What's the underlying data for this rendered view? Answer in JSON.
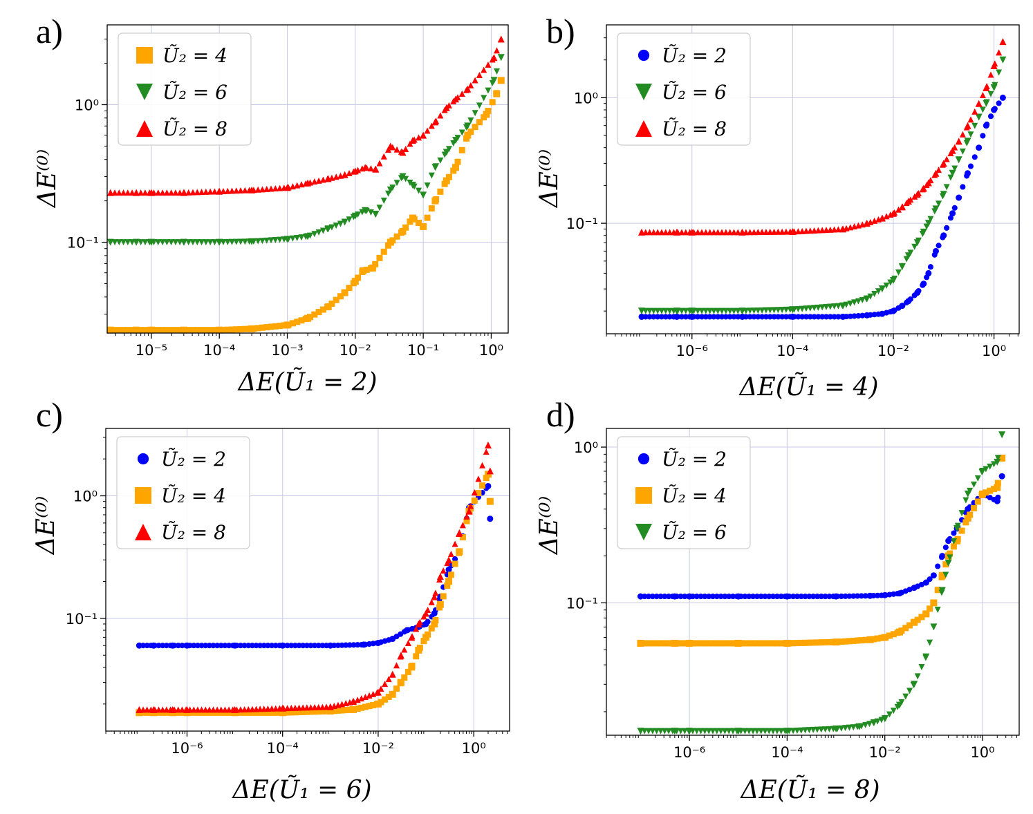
{
  "figure": {
    "panels": [
      "a)",
      "b)",
      "c)",
      "d)"
    ]
  },
  "chart_data": [
    {
      "type": "scatter",
      "panel": "a)",
      "xlabel": "ΔE(Ũ₁ = 2)",
      "ylabel": "ΔE⁽⁰⁾",
      "xscale": "log",
      "yscale": "log",
      "xlim_log10": [
        -5.65,
        0.25
      ],
      "ylim_log10": [
        -1.66,
        0.58
      ],
      "xticks": [
        "10⁻⁵",
        "10⁻⁴",
        "10⁻³",
        "10⁻²",
        "10⁻¹",
        "10⁰"
      ],
      "xtick_exponents": [
        -5,
        -4,
        -3,
        -2,
        -1,
        0
      ],
      "yticks": [
        "10⁻¹",
        "10⁰"
      ],
      "ytick_exponents": [
        -1,
        0
      ],
      "grid": true,
      "legend_position": "top-left",
      "series": [
        {
          "name": "Ũ₂ = 4",
          "marker": "square",
          "color": "#ffa500",
          "x": [
            2.5e-06,
            6e-06,
            1e-05,
            3e-05,
            0.0001,
            0.0003,
            0.001,
            0.002,
            0.004,
            0.007,
            0.01,
            0.013,
            0.018,
            0.033,
            0.05,
            0.07,
            0.1,
            0.15,
            0.22,
            0.3,
            0.45,
            0.85,
            1.2,
            1.4
          ],
          "y": [
            0.023,
            0.023,
            0.023,
            0.023,
            0.023,
            0.0235,
            0.025,
            0.028,
            0.034,
            0.043,
            0.052,
            0.062,
            0.065,
            0.1,
            0.12,
            0.15,
            0.13,
            0.2,
            0.28,
            0.35,
            0.6,
            0.85,
            1.2,
            1.5
          ]
        },
        {
          "name": "Ũ₂ = 6",
          "marker": "triangle-down",
          "color": "#228b22",
          "x": [
            2.5e-06,
            6e-06,
            1e-05,
            3e-05,
            0.0001,
            0.0003,
            0.001,
            0.002,
            0.004,
            0.007,
            0.01,
            0.014,
            0.02,
            0.033,
            0.05,
            0.07,
            0.1,
            0.15,
            0.22,
            0.3,
            0.45,
            1.1,
            1.4
          ],
          "y": [
            0.1,
            0.1,
            0.1,
            0.1,
            0.1,
            0.101,
            0.105,
            0.11,
            0.125,
            0.14,
            0.155,
            0.17,
            0.16,
            0.24,
            0.3,
            0.26,
            0.22,
            0.35,
            0.45,
            0.55,
            0.7,
            1.5,
            2.2
          ]
        },
        {
          "name": "Ũ₂ = 8",
          "marker": "triangle-up",
          "color": "#ff0000",
          "x": [
            2.5e-06,
            6e-06,
            1e-05,
            3e-05,
            0.0001,
            0.0003,
            0.001,
            0.002,
            0.004,
            0.007,
            0.01,
            0.014,
            0.02,
            0.033,
            0.05,
            0.07,
            0.1,
            0.15,
            0.22,
            0.3,
            0.45,
            1.1,
            1.4
          ],
          "y": [
            0.23,
            0.23,
            0.23,
            0.23,
            0.235,
            0.24,
            0.25,
            0.27,
            0.29,
            0.31,
            0.33,
            0.35,
            0.34,
            0.5,
            0.45,
            0.55,
            0.6,
            0.75,
            0.95,
            1.1,
            1.3,
            2.2,
            3.0
          ]
        }
      ]
    },
    {
      "type": "scatter",
      "panel": "b)",
      "xlabel": "ΔE(Ũ₁ = 4)",
      "ylabel": "ΔE⁽⁰⁾",
      "xscale": "log",
      "yscale": "log",
      "xlim_log10": [
        -7.7,
        0.5
      ],
      "ylim_log10": [
        -1.88,
        0.58
      ],
      "xticks": [
        "10⁻⁶",
        "10⁻⁴",
        "10⁻²",
        "10⁰"
      ],
      "xtick_exponents": [
        -6,
        -4,
        -2,
        0
      ],
      "yticks": [
        "10⁻¹",
        "10⁰"
      ],
      "ytick_exponents": [
        -1,
        0
      ],
      "grid": true,
      "legend_position": "top-left",
      "series": [
        {
          "name": "Ũ₂ = 2",
          "marker": "circle",
          "color": "#0000ff",
          "x": [
            1e-07,
            5e-07,
            1e-06,
            1e-05,
            0.0001,
            0.001,
            0.003,
            0.006,
            0.01,
            0.015,
            0.02,
            0.03,
            0.04,
            0.05,
            0.07,
            0.1,
            0.15,
            0.2,
            0.3,
            0.5,
            0.7,
            1.0,
            1.5
          ],
          "y": [
            0.018,
            0.018,
            0.018,
            0.018,
            0.018,
            0.018,
            0.0185,
            0.019,
            0.02,
            0.022,
            0.024,
            0.028,
            0.033,
            0.04,
            0.06,
            0.08,
            0.12,
            0.16,
            0.25,
            0.4,
            0.6,
            0.8,
            1.0
          ]
        },
        {
          "name": "Ũ₂ = 6",
          "marker": "triangle-down",
          "color": "#228b22",
          "x": [
            1e-07,
            5e-07,
            1e-06,
            1e-05,
            0.0001,
            0.001,
            0.003,
            0.006,
            0.01,
            0.015,
            0.02,
            0.03,
            0.04,
            0.05,
            0.07,
            0.1,
            0.15,
            0.2,
            0.3,
            0.5,
            0.7,
            1.0,
            1.5
          ],
          "y": [
            0.02,
            0.02,
            0.02,
            0.02,
            0.0205,
            0.022,
            0.025,
            0.03,
            0.035,
            0.045,
            0.055,
            0.07,
            0.085,
            0.1,
            0.13,
            0.17,
            0.25,
            0.32,
            0.45,
            0.7,
            0.9,
            1.2,
            2.0
          ]
        },
        {
          "name": "Ũ₂ = 8",
          "marker": "triangle-up",
          "color": "#ff0000",
          "x": [
            1e-07,
            5e-07,
            1e-06,
            1e-05,
            0.0001,
            0.001,
            0.003,
            0.006,
            0.01,
            0.015,
            0.02,
            0.03,
            0.04,
            0.05,
            0.07,
            0.1,
            0.15,
            0.2,
            0.3,
            0.5,
            0.7,
            1.0,
            1.5
          ],
          "y": [
            0.085,
            0.085,
            0.085,
            0.085,
            0.086,
            0.09,
            0.1,
            0.11,
            0.12,
            0.135,
            0.15,
            0.17,
            0.19,
            0.21,
            0.25,
            0.3,
            0.38,
            0.45,
            0.6,
            0.9,
            1.2,
            1.8,
            2.8
          ]
        }
      ]
    },
    {
      "type": "scatter",
      "panel": "c)",
      "xlabel": "ΔE(Ũ₁ = 6)",
      "ylabel": "ΔE⁽⁰⁾",
      "xscale": "log",
      "yscale": "log",
      "xlim_log10": [
        -7.7,
        0.75
      ],
      "ylim_log10": [
        -1.92,
        0.55
      ],
      "xticks": [
        "10⁻⁶",
        "10⁻⁴",
        "10⁻²",
        "10⁰"
      ],
      "xtick_exponents": [
        -6,
        -4,
        -2,
        0
      ],
      "yticks": [
        "10⁻¹",
        "10⁰"
      ],
      "ytick_exponents": [
        -1,
        0
      ],
      "grid": true,
      "legend_position": "top-left",
      "series": [
        {
          "name": "Ũ₂ = 2",
          "marker": "circle",
          "color": "#0000ff",
          "x": [
            1e-07,
            2e-07,
            5e-07,
            1e-06,
            1e-05,
            0.0001,
            0.001,
            0.005,
            0.01,
            0.02,
            0.04,
            0.07,
            0.1,
            0.15,
            0.2,
            0.3,
            0.5,
            0.8,
            2.0,
            2.2
          ],
          "y": [
            0.06,
            0.06,
            0.06,
            0.06,
            0.06,
            0.06,
            0.06,
            0.061,
            0.063,
            0.068,
            0.08,
            0.085,
            0.09,
            0.11,
            0.15,
            0.25,
            0.35,
            0.8,
            1.2,
            0.65
          ]
        },
        {
          "name": "Ũ₂ = 4",
          "marker": "square",
          "color": "#ffa500",
          "x": [
            1e-07,
            2e-07,
            5e-07,
            1e-06,
            1e-05,
            0.0001,
            0.001,
            0.003,
            0.01,
            0.02,
            0.03,
            0.05,
            0.07,
            0.1,
            0.15,
            0.2,
            0.3,
            0.5,
            0.8,
            2.0,
            2.2
          ],
          "y": [
            0.017,
            0.017,
            0.017,
            0.017,
            0.017,
            0.017,
            0.0175,
            0.018,
            0.02,
            0.024,
            0.03,
            0.04,
            0.055,
            0.07,
            0.09,
            0.13,
            0.2,
            0.35,
            0.75,
            1.5,
            0.9
          ]
        },
        {
          "name": "Ũ₂ = 8",
          "marker": "triangle-up",
          "color": "#ff0000",
          "x": [
            1e-07,
            2e-07,
            5e-07,
            1e-06,
            1e-05,
            0.0001,
            0.001,
            0.003,
            0.01,
            0.02,
            0.03,
            0.05,
            0.07,
            0.1,
            0.15,
            0.2,
            0.3,
            0.5,
            0.8,
            2.0,
            2.2
          ],
          "y": [
            0.018,
            0.018,
            0.018,
            0.018,
            0.018,
            0.0185,
            0.019,
            0.021,
            0.025,
            0.035,
            0.05,
            0.07,
            0.09,
            0.11,
            0.15,
            0.22,
            0.3,
            0.5,
            0.75,
            2.6,
            1.6
          ]
        }
      ]
    },
    {
      "type": "scatter",
      "panel": "d)",
      "xlabel": "ΔE(Ũ₁ = 8)",
      "ylabel": "ΔE⁽⁰⁾",
      "xscale": "log",
      "yscale": "log",
      "xlim_log10": [
        -7.7,
        0.75
      ],
      "ylim_log10": [
        -1.85,
        0.12
      ],
      "xticks": [
        "10⁻⁶",
        "10⁻⁴",
        "10⁻²",
        "10⁰"
      ],
      "xtick_exponents": [
        -6,
        -4,
        -2,
        0
      ],
      "yticks": [
        "10⁻¹",
        "10⁰"
      ],
      "ytick_exponents": [
        -1,
        0
      ],
      "grid": true,
      "legend_position": "top-left",
      "series": [
        {
          "name": "Ũ₂ = 2",
          "marker": "circle",
          "color": "#0000ff",
          "x": [
            1e-07,
            5e-07,
            1e-06,
            1e-05,
            0.0001,
            0.001,
            0.005,
            0.01,
            0.02,
            0.04,
            0.07,
            0.1,
            0.15,
            0.2,
            0.3,
            0.5,
            1.0,
            2.0,
            2.5
          ],
          "y": [
            0.11,
            0.11,
            0.11,
            0.11,
            0.11,
            0.11,
            0.111,
            0.112,
            0.115,
            0.125,
            0.135,
            0.15,
            0.2,
            0.25,
            0.3,
            0.4,
            0.5,
            0.45,
            0.65
          ]
        },
        {
          "name": "Ũ₂ = 4",
          "marker": "square",
          "color": "#ffa500",
          "x": [
            1e-07,
            5e-07,
            1e-06,
            1e-05,
            0.0001,
            0.001,
            0.005,
            0.01,
            0.02,
            0.04,
            0.07,
            0.1,
            0.15,
            0.2,
            0.3,
            0.5,
            1.0,
            2.0,
            2.5
          ],
          "y": [
            0.055,
            0.055,
            0.055,
            0.055,
            0.055,
            0.056,
            0.058,
            0.06,
            0.065,
            0.075,
            0.085,
            0.1,
            0.15,
            0.2,
            0.25,
            0.35,
            0.5,
            0.55,
            0.85
          ]
        },
        {
          "name": "Ũ₂ = 6",
          "marker": "triangle-down",
          "color": "#228b22",
          "x": [
            1e-07,
            5e-07,
            1e-06,
            1e-05,
            0.0001,
            0.001,
            0.003,
            0.006,
            0.01,
            0.02,
            0.04,
            0.07,
            0.1,
            0.15,
            0.2,
            0.3,
            0.5,
            1.0,
            2.0,
            2.5
          ],
          "y": [
            0.015,
            0.015,
            0.015,
            0.015,
            0.015,
            0.0155,
            0.016,
            0.017,
            0.018,
            0.022,
            0.03,
            0.045,
            0.07,
            0.12,
            0.18,
            0.3,
            0.5,
            0.7,
            0.8,
            1.2
          ]
        }
      ]
    }
  ]
}
